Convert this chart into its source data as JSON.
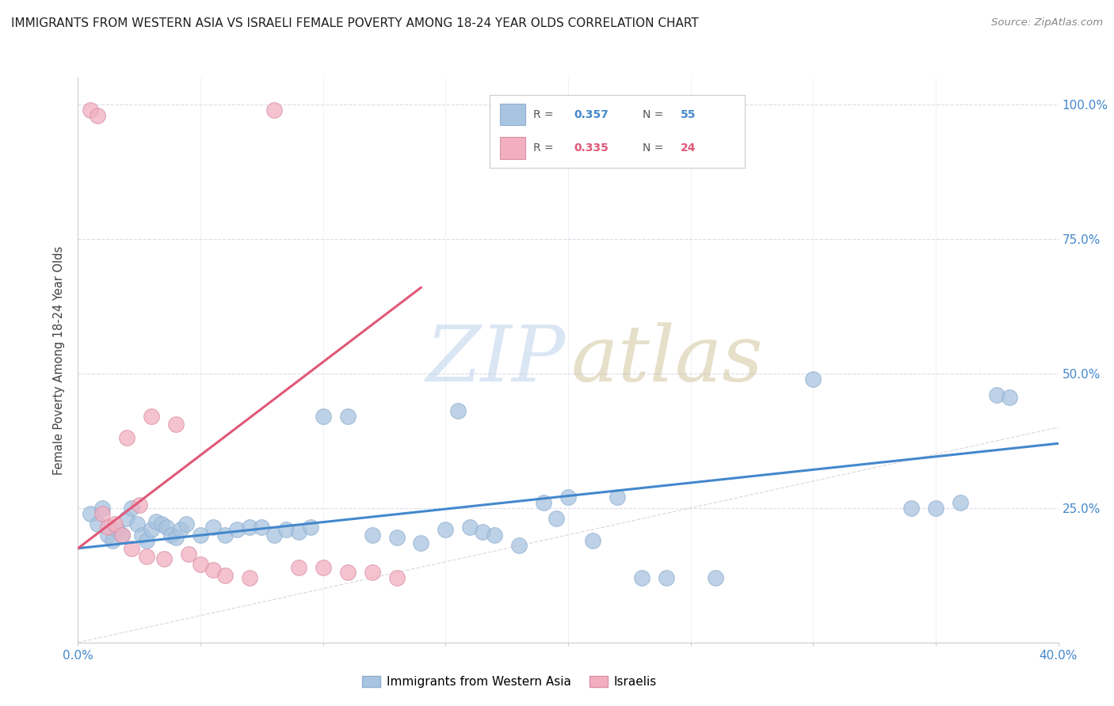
{
  "title": "IMMIGRANTS FROM WESTERN ASIA VS ISRAELI FEMALE POVERTY AMONG 18-24 YEAR OLDS CORRELATION CHART",
  "source": "Source: ZipAtlas.com",
  "ylabel": "Female Poverty Among 18-24 Year Olds",
  "xlim": [
    0.0,
    0.4
  ],
  "ylim": [
    0.0,
    1.05
  ],
  "xticks": [
    0.0,
    0.05,
    0.1,
    0.15,
    0.2,
    0.25,
    0.3,
    0.35,
    0.4
  ],
  "xtick_labels": [
    "0.0%",
    "",
    "",
    "",
    "",
    "",
    "",
    "",
    "40.0%"
  ],
  "ytick_labels_right": [
    "",
    "25.0%",
    "50.0%",
    "75.0%",
    "100.0%"
  ],
  "yticks_right": [
    0.0,
    0.25,
    0.5,
    0.75,
    1.0
  ],
  "blue_color": "#a8c4e0",
  "pink_color": "#f2afc0",
  "blue_line_color": "#4488cc",
  "pink_line_color": "#e05878",
  "blue_scatter_x": [
    0.005,
    0.008,
    0.01,
    0.012,
    0.014,
    0.016,
    0.018,
    0.02,
    0.022,
    0.024,
    0.026,
    0.028,
    0.03,
    0.032,
    0.034,
    0.036,
    0.038,
    0.04,
    0.042,
    0.044,
    0.05,
    0.055,
    0.06,
    0.065,
    0.07,
    0.075,
    0.08,
    0.085,
    0.09,
    0.095,
    0.1,
    0.11,
    0.12,
    0.13,
    0.14,
    0.15,
    0.155,
    0.16,
    0.165,
    0.17,
    0.18,
    0.19,
    0.195,
    0.2,
    0.21,
    0.22,
    0.23,
    0.24,
    0.26,
    0.3,
    0.34,
    0.35,
    0.36,
    0.375,
    0.38
  ],
  "blue_scatter_y": [
    0.24,
    0.22,
    0.25,
    0.2,
    0.19,
    0.21,
    0.2,
    0.23,
    0.25,
    0.22,
    0.2,
    0.19,
    0.21,
    0.225,
    0.22,
    0.215,
    0.2,
    0.195,
    0.21,
    0.22,
    0.2,
    0.215,
    0.2,
    0.21,
    0.215,
    0.215,
    0.2,
    0.21,
    0.205,
    0.215,
    0.42,
    0.42,
    0.2,
    0.195,
    0.185,
    0.21,
    0.43,
    0.215,
    0.205,
    0.2,
    0.18,
    0.26,
    0.23,
    0.27,
    0.19,
    0.27,
    0.12,
    0.12,
    0.12,
    0.49,
    0.25,
    0.25,
    0.26,
    0.46,
    0.455
  ],
  "pink_scatter_x": [
    0.005,
    0.008,
    0.01,
    0.012,
    0.015,
    0.018,
    0.02,
    0.022,
    0.025,
    0.028,
    0.03,
    0.035,
    0.04,
    0.045,
    0.05,
    0.055,
    0.06,
    0.07,
    0.08,
    0.09,
    0.1,
    0.11,
    0.12,
    0.13
  ],
  "pink_scatter_y": [
    0.99,
    0.98,
    0.24,
    0.215,
    0.22,
    0.2,
    0.38,
    0.175,
    0.255,
    0.16,
    0.42,
    0.155,
    0.405,
    0.165,
    0.145,
    0.135,
    0.125,
    0.12,
    0.99,
    0.14,
    0.14,
    0.13,
    0.13,
    0.12
  ],
  "blue_trend_x": [
    0.0,
    0.4
  ],
  "blue_trend_y": [
    0.175,
    0.37
  ],
  "pink_trend_x": [
    0.0,
    0.14
  ],
  "pink_trend_y": [
    0.175,
    0.66
  ],
  "ref_line_x": [
    0.0,
    0.4
  ],
  "ref_line_y": [
    0.0,
    0.4
  ]
}
